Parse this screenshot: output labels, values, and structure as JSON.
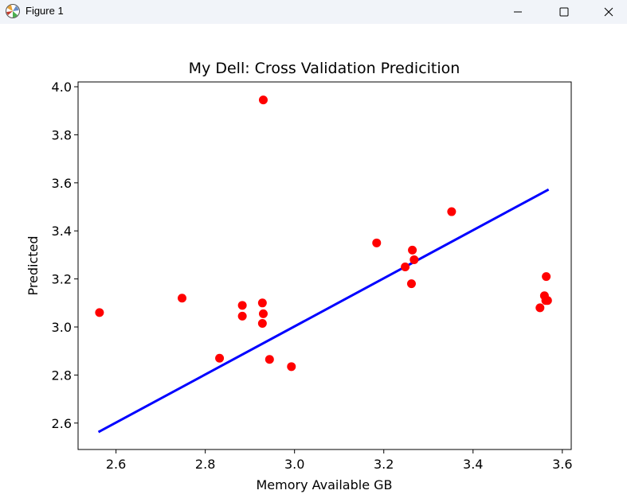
{
  "window": {
    "title": "Figure 1",
    "icon": "matplotlib-icon",
    "controls": [
      "minimize-icon",
      "maximize-icon",
      "close-icon"
    ]
  },
  "chart_data": {
    "type": "scatter",
    "title": "My Dell: Cross Validation Predicition",
    "xlabel": "Memory Available GB",
    "ylabel": "Predicted",
    "xlim": [
      2.515,
      3.62
    ],
    "ylim": [
      2.49,
      4.02
    ],
    "xticks": [
      "2.6",
      "2.8",
      "3.0",
      "3.2",
      "3.4",
      "3.6"
    ],
    "yticks": [
      "2.6",
      "2.8",
      "3.0",
      "3.2",
      "3.4",
      "3.6",
      "3.8",
      "4.0"
    ],
    "grid": false,
    "colors": {
      "points": "#ff0000",
      "line": "#0000ff"
    },
    "series": [
      {
        "kind": "scatter",
        "points": [
          [
            2.563,
            3.06
          ],
          [
            2.748,
            3.12
          ],
          [
            2.832,
            2.87
          ],
          [
            2.883,
            3.09
          ],
          [
            2.883,
            3.045
          ],
          [
            2.928,
            3.1
          ],
          [
            2.93,
            3.055
          ],
          [
            2.928,
            3.015
          ],
          [
            2.93,
            3.945
          ],
          [
            2.944,
            2.865
          ],
          [
            2.993,
            2.835
          ],
          [
            3.184,
            3.35
          ],
          [
            3.248,
            3.25
          ],
          [
            3.262,
            3.18
          ],
          [
            3.264,
            3.32
          ],
          [
            3.268,
            3.28
          ],
          [
            3.352,
            3.48
          ],
          [
            3.55,
            3.08
          ],
          [
            3.56,
            3.13
          ],
          [
            3.563,
            3.11
          ],
          [
            3.564,
            3.21
          ],
          [
            3.567,
            3.11
          ]
        ]
      },
      {
        "kind": "line",
        "points": [
          [
            2.563,
            2.565
          ],
          [
            3.567,
            3.57
          ]
        ]
      }
    ]
  }
}
